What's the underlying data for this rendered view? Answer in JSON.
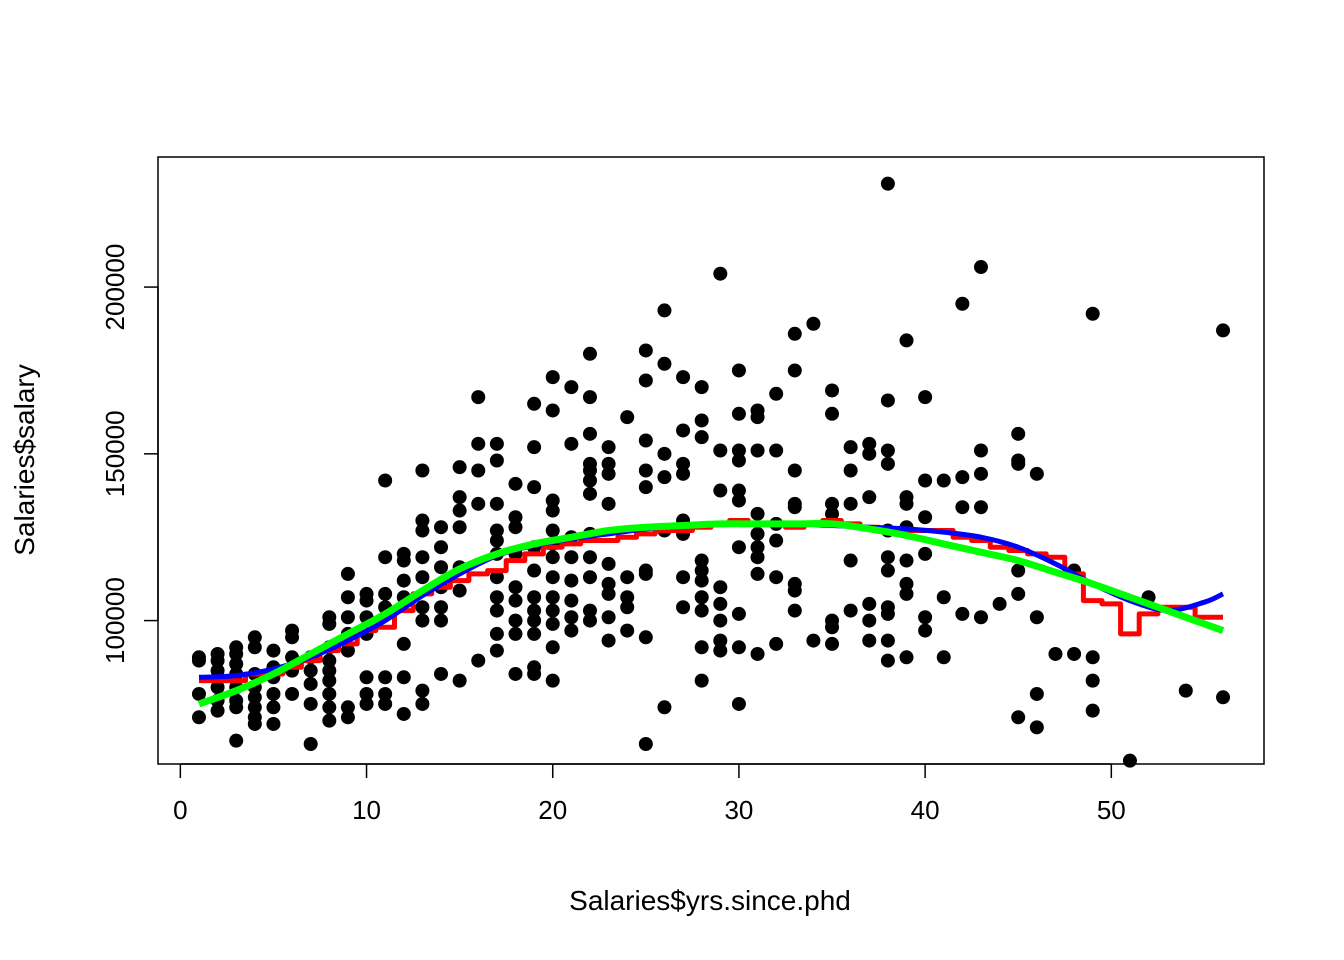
{
  "chart_data": {
    "type": "scatter",
    "xlabel": "Salaries$yrs.since.phd",
    "ylabel": "Salaries$salary",
    "xlim": [
      -1.2,
      58.2
    ],
    "ylim": [
      57000,
      239000
    ],
    "x_ticks": [
      0,
      10,
      20,
      30,
      40,
      50
    ],
    "y_ticks": [
      100000,
      150000,
      200000
    ],
    "x_tick_labels": [
      "0",
      "10",
      "20",
      "30",
      "40",
      "50"
    ],
    "y_tick_labels": [
      "100000",
      "150000",
      "200000"
    ],
    "grid": false,
    "legend": "none",
    "colors": {
      "points": "#000000",
      "step_fit": "#ff0000",
      "spline_fit": "#0000ff",
      "smooth_fit": "#00ff00"
    },
    "points": [
      [
        1,
        89000
      ],
      [
        1,
        88000
      ],
      [
        1,
        78000
      ],
      [
        1,
        71000
      ],
      [
        2,
        90000
      ],
      [
        2,
        88000
      ],
      [
        2,
        85000
      ],
      [
        2,
        80000
      ],
      [
        2,
        76000
      ],
      [
        2,
        73000
      ],
      [
        3,
        92000
      ],
      [
        3,
        90000
      ],
      [
        3,
        87000
      ],
      [
        3,
        84000
      ],
      [
        3,
        80000
      ],
      [
        3,
        76000
      ],
      [
        3,
        74000
      ],
      [
        3,
        64000
      ],
      [
        4,
        95000
      ],
      [
        4,
        92000
      ],
      [
        4,
        84000
      ],
      [
        4,
        80000
      ],
      [
        4,
        77000
      ],
      [
        4,
        74000
      ],
      [
        4,
        71000
      ],
      [
        4,
        69000
      ],
      [
        5,
        91000
      ],
      [
        5,
        86000
      ],
      [
        5,
        83000
      ],
      [
        5,
        78000
      ],
      [
        5,
        74000
      ],
      [
        5,
        69000
      ],
      [
        6,
        97000
      ],
      [
        6,
        95000
      ],
      [
        6,
        89000
      ],
      [
        6,
        85000
      ],
      [
        6,
        78000
      ],
      [
        7,
        89000
      ],
      [
        7,
        85000
      ],
      [
        7,
        81000
      ],
      [
        7,
        75000
      ],
      [
        7,
        63000
      ],
      [
        8,
        101000
      ],
      [
        8,
        99000
      ],
      [
        8,
        92000
      ],
      [
        8,
        88000
      ],
      [
        8,
        85000
      ],
      [
        8,
        82000
      ],
      [
        8,
        78000
      ],
      [
        8,
        74000
      ],
      [
        8,
        70000
      ],
      [
        9,
        114000
      ],
      [
        9,
        107000
      ],
      [
        9,
        101000
      ],
      [
        9,
        96000
      ],
      [
        9,
        91000
      ],
      [
        9,
        74000
      ],
      [
        9,
        71000
      ],
      [
        10,
        108000
      ],
      [
        10,
        106000
      ],
      [
        10,
        101000
      ],
      [
        10,
        96000
      ],
      [
        10,
        83000
      ],
      [
        10,
        78000
      ],
      [
        10,
        75000
      ],
      [
        11,
        142000
      ],
      [
        11,
        119000
      ],
      [
        11,
        108000
      ],
      [
        11,
        104000
      ],
      [
        11,
        83000
      ],
      [
        11,
        78000
      ],
      [
        11,
        75000
      ],
      [
        12,
        120000
      ],
      [
        12,
        118000
      ],
      [
        12,
        112000
      ],
      [
        12,
        107000
      ],
      [
        12,
        93000
      ],
      [
        12,
        83000
      ],
      [
        12,
        72000
      ],
      [
        13,
        145000
      ],
      [
        13,
        130000
      ],
      [
        13,
        127000
      ],
      [
        13,
        119000
      ],
      [
        13,
        113000
      ],
      [
        13,
        104000
      ],
      [
        13,
        100000
      ],
      [
        13,
        79000
      ],
      [
        13,
        75000
      ],
      [
        14,
        128000
      ],
      [
        14,
        122000
      ],
      [
        14,
        116000
      ],
      [
        14,
        110000
      ],
      [
        14,
        104000
      ],
      [
        14,
        100000
      ],
      [
        14,
        84000
      ],
      [
        15,
        146000
      ],
      [
        15,
        137000
      ],
      [
        15,
        133000
      ],
      [
        15,
        128000
      ],
      [
        15,
        116000
      ],
      [
        15,
        109000
      ],
      [
        15,
        82000
      ],
      [
        16,
        167000
      ],
      [
        16,
        153000
      ],
      [
        16,
        145000
      ],
      [
        16,
        135000
      ],
      [
        16,
        88000
      ],
      [
        17,
        153000
      ],
      [
        17,
        148000
      ],
      [
        17,
        135000
      ],
      [
        17,
        127000
      ],
      [
        17,
        124000
      ],
      [
        17,
        120000
      ],
      [
        17,
        113000
      ],
      [
        17,
        107000
      ],
      [
        17,
        103000
      ],
      [
        17,
        96000
      ],
      [
        17,
        91000
      ],
      [
        18,
        141000
      ],
      [
        18,
        131000
      ],
      [
        18,
        128000
      ],
      [
        18,
        120000
      ],
      [
        18,
        110000
      ],
      [
        18,
        106000
      ],
      [
        18,
        100000
      ],
      [
        18,
        96000
      ],
      [
        18,
        84000
      ],
      [
        19,
        165000
      ],
      [
        19,
        152000
      ],
      [
        19,
        140000
      ],
      [
        19,
        122000
      ],
      [
        19,
        115000
      ],
      [
        19,
        107000
      ],
      [
        19,
        103000
      ],
      [
        19,
        100000
      ],
      [
        19,
        96000
      ],
      [
        19,
        86000
      ],
      [
        19,
        84000
      ],
      [
        20,
        173000
      ],
      [
        20,
        163000
      ],
      [
        20,
        136000
      ],
      [
        20,
        133000
      ],
      [
        20,
        127000
      ],
      [
        20,
        123000
      ],
      [
        20,
        119000
      ],
      [
        20,
        113000
      ],
      [
        20,
        107000
      ],
      [
        20,
        103000
      ],
      [
        20,
        99000
      ],
      [
        20,
        92000
      ],
      [
        20,
        82000
      ],
      [
        21,
        170000
      ],
      [
        21,
        153000
      ],
      [
        21,
        125000
      ],
      [
        21,
        119000
      ],
      [
        21,
        112000
      ],
      [
        21,
        106000
      ],
      [
        21,
        101000
      ],
      [
        21,
        97000
      ],
      [
        22,
        180000
      ],
      [
        22,
        167000
      ],
      [
        22,
        156000
      ],
      [
        22,
        147000
      ],
      [
        22,
        145000
      ],
      [
        22,
        142000
      ],
      [
        22,
        138000
      ],
      [
        22,
        126000
      ],
      [
        22,
        119000
      ],
      [
        22,
        113000
      ],
      [
        22,
        103000
      ],
      [
        22,
        100000
      ],
      [
        23,
        152000
      ],
      [
        23,
        147000
      ],
      [
        23,
        144000
      ],
      [
        23,
        135000
      ],
      [
        23,
        117000
      ],
      [
        23,
        111000
      ],
      [
        23,
        108000
      ],
      [
        23,
        101000
      ],
      [
        23,
        94000
      ],
      [
        24,
        161000
      ],
      [
        24,
        113000
      ],
      [
        24,
        107000
      ],
      [
        24,
        104000
      ],
      [
        24,
        97000
      ],
      [
        25,
        181000
      ],
      [
        25,
        172000
      ],
      [
        25,
        154000
      ],
      [
        25,
        145000
      ],
      [
        25,
        140000
      ],
      [
        25,
        115000
      ],
      [
        25,
        114000
      ],
      [
        25,
        95000
      ],
      [
        25,
        63000
      ],
      [
        26,
        193000
      ],
      [
        26,
        177000
      ],
      [
        26,
        150000
      ],
      [
        26,
        143000
      ],
      [
        26,
        127000
      ],
      [
        26,
        74000
      ],
      [
        27,
        173000
      ],
      [
        27,
        157000
      ],
      [
        27,
        147000
      ],
      [
        27,
        144000
      ],
      [
        27,
        130000
      ],
      [
        27,
        126000
      ],
      [
        27,
        113000
      ],
      [
        27,
        104000
      ],
      [
        28,
        170000
      ],
      [
        28,
        160000
      ],
      [
        28,
        155000
      ],
      [
        28,
        118000
      ],
      [
        28,
        115000
      ],
      [
        28,
        112000
      ],
      [
        28,
        107000
      ],
      [
        28,
        103000
      ],
      [
        28,
        92000
      ],
      [
        28,
        82000
      ],
      [
        29,
        204000
      ],
      [
        29,
        151000
      ],
      [
        29,
        139000
      ],
      [
        29,
        110000
      ],
      [
        29,
        105000
      ],
      [
        29,
        100000
      ],
      [
        29,
        94000
      ],
      [
        29,
        91000
      ],
      [
        30,
        175000
      ],
      [
        30,
        162000
      ],
      [
        30,
        151000
      ],
      [
        30,
        148000
      ],
      [
        30,
        139000
      ],
      [
        30,
        136000
      ],
      [
        30,
        122000
      ],
      [
        30,
        102000
      ],
      [
        30,
        92000
      ],
      [
        30,
        75000
      ],
      [
        31,
        163000
      ],
      [
        31,
        161000
      ],
      [
        31,
        151000
      ],
      [
        31,
        132000
      ],
      [
        31,
        126000
      ],
      [
        31,
        122000
      ],
      [
        31,
        119000
      ],
      [
        31,
        114000
      ],
      [
        31,
        90000
      ],
      [
        32,
        168000
      ],
      [
        32,
        151000
      ],
      [
        32,
        129000
      ],
      [
        32,
        124000
      ],
      [
        32,
        113000
      ],
      [
        32,
        93000
      ],
      [
        33,
        186000
      ],
      [
        33,
        175000
      ],
      [
        33,
        145000
      ],
      [
        33,
        135000
      ],
      [
        33,
        134000
      ],
      [
        33,
        111000
      ],
      [
        33,
        109000
      ],
      [
        33,
        103000
      ],
      [
        34,
        189000
      ],
      [
        34,
        94000
      ],
      [
        35,
        169000
      ],
      [
        35,
        162000
      ],
      [
        35,
        135000
      ],
      [
        35,
        132000
      ],
      [
        35,
        100000
      ],
      [
        35,
        98000
      ],
      [
        35,
        93000
      ],
      [
        36,
        152000
      ],
      [
        36,
        145000
      ],
      [
        36,
        135000
      ],
      [
        36,
        118000
      ],
      [
        36,
        103000
      ],
      [
        37,
        153000
      ],
      [
        37,
        150000
      ],
      [
        37,
        137000
      ],
      [
        37,
        105000
      ],
      [
        37,
        100000
      ],
      [
        37,
        94000
      ],
      [
        38,
        231000
      ],
      [
        38,
        166000
      ],
      [
        38,
        151000
      ],
      [
        38,
        147000
      ],
      [
        38,
        127000
      ],
      [
        38,
        119000
      ],
      [
        38,
        115000
      ],
      [
        38,
        104000
      ],
      [
        38,
        102000
      ],
      [
        38,
        94000
      ],
      [
        38,
        88000
      ],
      [
        39,
        184000
      ],
      [
        39,
        137000
      ],
      [
        39,
        135000
      ],
      [
        39,
        128000
      ],
      [
        39,
        118000
      ],
      [
        39,
        111000
      ],
      [
        39,
        108000
      ],
      [
        39,
        89000
      ],
      [
        40,
        167000
      ],
      [
        40,
        142000
      ],
      [
        40,
        131000
      ],
      [
        40,
        120000
      ],
      [
        40,
        101000
      ],
      [
        40,
        97000
      ],
      [
        41,
        142000
      ],
      [
        41,
        107000
      ],
      [
        41,
        89000
      ],
      [
        42,
        195000
      ],
      [
        42,
        143000
      ],
      [
        42,
        134000
      ],
      [
        42,
        102000
      ],
      [
        43,
        206000
      ],
      [
        43,
        151000
      ],
      [
        43,
        144000
      ],
      [
        43,
        134000
      ],
      [
        43,
        101000
      ],
      [
        44,
        105000
      ],
      [
        45,
        156000
      ],
      [
        45,
        148000
      ],
      [
        45,
        147000
      ],
      [
        45,
        115000
      ],
      [
        45,
        108000
      ],
      [
        45,
        71000
      ],
      [
        46,
        144000
      ],
      [
        46,
        101000
      ],
      [
        46,
        78000
      ],
      [
        46,
        68000
      ],
      [
        47,
        90000
      ],
      [
        48,
        115000
      ],
      [
        48,
        90000
      ],
      [
        49,
        192000
      ],
      [
        49,
        89000
      ],
      [
        49,
        82000
      ],
      [
        49,
        73000
      ],
      [
        51,
        58000
      ],
      [
        52,
        107000
      ],
      [
        54,
        79000
      ],
      [
        56,
        187000
      ],
      [
        56,
        77000
      ]
    ],
    "series": [
      {
        "line_type": "step",
        "color": "#ff0000",
        "x": [
          1,
          2,
          3,
          4,
          5,
          6,
          7,
          8,
          9,
          10,
          11,
          12,
          13,
          14,
          15,
          16,
          17,
          18,
          19,
          20,
          21,
          22,
          23,
          24,
          25,
          26,
          27,
          28,
          29,
          30,
          31,
          32,
          33,
          34,
          35,
          36,
          37,
          38,
          39,
          40,
          41,
          42,
          43,
          44,
          45,
          46,
          47,
          48,
          49,
          50,
          51,
          52,
          53,
          54,
          55,
          56
        ],
        "values": [
          82000,
          82000,
          82000,
          84000,
          84000,
          86000,
          88000,
          91000,
          93000,
          97000,
          98000,
          103000,
          108000,
          110000,
          112000,
          114000,
          115000,
          118000,
          120000,
          122000,
          123000,
          124000,
          124000,
          125000,
          126000,
          127000,
          127000,
          128000,
          129000,
          130000,
          129000,
          129000,
          128000,
          129000,
          130000,
          129000,
          128000,
          127000,
          127000,
          127000,
          127000,
          125000,
          124000,
          122000,
          121000,
          120000,
          119000,
          114000,
          106000,
          105000,
          96000,
          102000,
          104000,
          104000,
          101000,
          101000
        ]
      },
      {
        "line_type": "spline",
        "color": "#0000ff",
        "x": [
          1,
          3,
          5,
          7,
          9,
          11,
          13,
          15,
          17,
          19,
          21,
          23,
          25,
          27,
          29,
          31,
          33,
          35,
          37,
          39,
          41,
          43,
          45,
          47,
          49,
          51,
          53,
          55,
          56
        ],
        "values": [
          83000,
          83500,
          85500,
          89000,
          94000,
          100000,
          107500,
          114000,
          119500,
          122500,
          124500,
          126000,
          127500,
          128500,
          129000,
          129000,
          129000,
          128500,
          128000,
          127500,
          126500,
          125000,
          122000,
          117000,
          111000,
          106000,
          103000,
          105500,
          108000
        ]
      },
      {
        "line_type": "smooth",
        "color": "#00ff00",
        "x": [
          1,
          3,
          5,
          7,
          9,
          11,
          13,
          15,
          17,
          19,
          21,
          23,
          25,
          27,
          29,
          31,
          33,
          35,
          37,
          39,
          41,
          43,
          45,
          47,
          49,
          51,
          53,
          55,
          56
        ],
        "values": [
          75000,
          79000,
          84000,
          90000,
          96000,
          102000,
          109000,
          115500,
          120000,
          123000,
          125000,
          127000,
          128000,
          128500,
          129000,
          129000,
          129000,
          129000,
          127500,
          125500,
          123000,
          120500,
          118000,
          114500,
          111000,
          107000,
          103000,
          99000,
          97000
        ]
      }
    ]
  }
}
